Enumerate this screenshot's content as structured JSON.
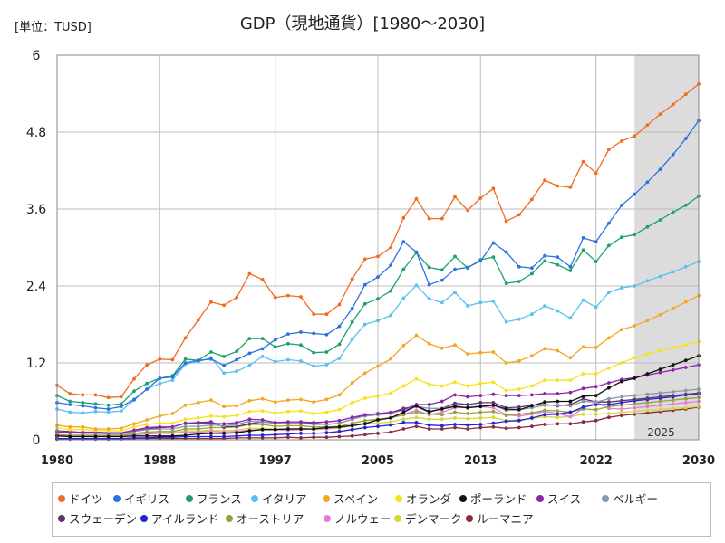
{
  "chart_data": {
    "type": "line",
    "title": "GDP（現地通貨）[1980～2030]",
    "unit_label": "[単位：TUSD]",
    "xlabel": "",
    "ylabel": "",
    "xlim": [
      1980,
      2030
    ],
    "ylim": [
      0,
      6
    ],
    "yticks": [
      "0",
      "1.2",
      "2.4",
      "3.6",
      "4.8",
      "6"
    ],
    "xticks": [
      1980,
      1988,
      1997,
      2005,
      2013,
      2022,
      2030
    ],
    "forecast_start": 2025,
    "forecast_label": "2025",
    "grid": true,
    "legend_position": "bottom",
    "x": [
      1980,
      1981,
      1982,
      1983,
      1984,
      1985,
      1986,
      1987,
      1988,
      1989,
      1990,
      1991,
      1992,
      1993,
      1994,
      1995,
      1996,
      1997,
      1998,
      1999,
      2000,
      2001,
      2002,
      2003,
      2004,
      2005,
      2006,
      2007,
      2008,
      2009,
      2010,
      2011,
      2012,
      2013,
      2014,
      2015,
      2016,
      2017,
      2018,
      2019,
      2020,
      2021,
      2022,
      2023,
      2024,
      2025,
      2026,
      2027,
      2028,
      2029,
      2030
    ],
    "series": [
      {
        "name": "ドイツ",
        "color": "#f26b21",
        "values": [
          0.85,
          0.72,
          0.7,
          0.7,
          0.66,
          0.67,
          0.95,
          1.17,
          1.26,
          1.25,
          1.59,
          1.87,
          2.15,
          2.1,
          2.22,
          2.59,
          2.5,
          2.22,
          2.25,
          2.23,
          1.96,
          1.96,
          2.11,
          2.51,
          2.82,
          2.86,
          3.0,
          3.46,
          3.76,
          3.45,
          3.45,
          3.79,
          3.58,
          3.77,
          3.92,
          3.41,
          3.51,
          3.75,
          4.05,
          3.96,
          3.94,
          4.34,
          4.16,
          4.53,
          4.66,
          4.74,
          4.91,
          5.08,
          5.23,
          5.39,
          5.55
        ]
      },
      {
        "name": "イギリス",
        "color": "#2b72e3",
        "values": [
          0.58,
          0.55,
          0.53,
          0.5,
          0.48,
          0.52,
          0.63,
          0.79,
          0.96,
          0.98,
          1.2,
          1.24,
          1.26,
          1.16,
          1.25,
          1.35,
          1.42,
          1.56,
          1.65,
          1.68,
          1.66,
          1.64,
          1.77,
          2.05,
          2.42,
          2.54,
          2.72,
          3.09,
          2.93,
          2.42,
          2.49,
          2.66,
          2.69,
          2.79,
          3.07,
          2.93,
          2.7,
          2.68,
          2.87,
          2.85,
          2.7,
          3.15,
          3.09,
          3.38,
          3.66,
          3.83,
          4.02,
          4.22,
          4.45,
          4.7,
          4.98
        ]
      },
      {
        "name": "フランス",
        "color": "#1ea070",
        "values": [
          0.69,
          0.6,
          0.58,
          0.56,
          0.54,
          0.56,
          0.76,
          0.88,
          0.96,
          1.0,
          1.26,
          1.24,
          1.37,
          1.3,
          1.38,
          1.58,
          1.58,
          1.45,
          1.5,
          1.48,
          1.36,
          1.37,
          1.49,
          1.84,
          2.12,
          2.2,
          2.32,
          2.66,
          2.92,
          2.69,
          2.65,
          2.86,
          2.68,
          2.81,
          2.85,
          2.44,
          2.47,
          2.59,
          2.79,
          2.73,
          2.64,
          2.96,
          2.78,
          3.03,
          3.16,
          3.2,
          3.32,
          3.43,
          3.55,
          3.66,
          3.8
        ]
      },
      {
        "name": "イタリア",
        "color": "#5bc0ee",
        "values": [
          0.48,
          0.43,
          0.42,
          0.44,
          0.43,
          0.45,
          0.62,
          0.79,
          0.88,
          0.93,
          1.18,
          1.22,
          1.28,
          1.04,
          1.07,
          1.16,
          1.3,
          1.22,
          1.25,
          1.23,
          1.15,
          1.17,
          1.27,
          1.57,
          1.8,
          1.86,
          1.94,
          2.21,
          2.41,
          2.2,
          2.14,
          2.3,
          2.09,
          2.14,
          2.16,
          1.84,
          1.88,
          1.96,
          2.09,
          2.01,
          1.9,
          2.18,
          2.07,
          2.3,
          2.37,
          2.4,
          2.48,
          2.55,
          2.62,
          2.7,
          2.78
        ]
      },
      {
        "name": "スペイン",
        "color": "#f5a623",
        "values": [
          0.23,
          0.2,
          0.2,
          0.17,
          0.17,
          0.18,
          0.25,
          0.31,
          0.37,
          0.41,
          0.54,
          0.58,
          0.62,
          0.52,
          0.53,
          0.61,
          0.64,
          0.59,
          0.62,
          0.63,
          0.59,
          0.63,
          0.7,
          0.89,
          1.04,
          1.15,
          1.26,
          1.47,
          1.63,
          1.5,
          1.43,
          1.48,
          1.34,
          1.36,
          1.37,
          1.2,
          1.23,
          1.31,
          1.42,
          1.39,
          1.28,
          1.45,
          1.44,
          1.59,
          1.72,
          1.78,
          1.86,
          1.95,
          2.05,
          2.15,
          2.25
        ]
      },
      {
        "name": "オランダ",
        "color": "#f7e21b",
        "values": [
          0.19,
          0.16,
          0.16,
          0.15,
          0.14,
          0.14,
          0.2,
          0.24,
          0.26,
          0.26,
          0.32,
          0.34,
          0.37,
          0.36,
          0.38,
          0.44,
          0.45,
          0.42,
          0.44,
          0.45,
          0.41,
          0.43,
          0.47,
          0.58,
          0.65,
          0.68,
          0.73,
          0.84,
          0.95,
          0.87,
          0.84,
          0.9,
          0.84,
          0.88,
          0.9,
          0.77,
          0.79,
          0.84,
          0.93,
          0.93,
          0.93,
          1.03,
          1.03,
          1.12,
          1.2,
          1.28,
          1.34,
          1.39,
          1.44,
          1.48,
          1.53
        ]
      },
      {
        "name": "ポーランド",
        "color": "#111111",
        "values": [
          0.06,
          0.05,
          0.05,
          0.05,
          0.05,
          0.05,
          0.06,
          0.06,
          0.06,
          0.06,
          0.07,
          0.09,
          0.1,
          0.1,
          0.11,
          0.14,
          0.16,
          0.16,
          0.17,
          0.17,
          0.17,
          0.19,
          0.2,
          0.22,
          0.25,
          0.31,
          0.34,
          0.43,
          0.53,
          0.44,
          0.48,
          0.52,
          0.5,
          0.52,
          0.54,
          0.48,
          0.47,
          0.53,
          0.59,
          0.6,
          0.6,
          0.68,
          0.69,
          0.81,
          0.91,
          0.96,
          1.03,
          1.1,
          1.17,
          1.24,
          1.31
        ]
      },
      {
        "name": "スイス",
        "color": "#8e24aa",
        "values": [
          0.12,
          0.12,
          0.12,
          0.12,
          0.11,
          0.11,
          0.15,
          0.19,
          0.2,
          0.2,
          0.26,
          0.26,
          0.26,
          0.25,
          0.27,
          0.32,
          0.31,
          0.27,
          0.28,
          0.28,
          0.27,
          0.28,
          0.3,
          0.35,
          0.39,
          0.41,
          0.43,
          0.47,
          0.55,
          0.55,
          0.6,
          0.7,
          0.67,
          0.69,
          0.71,
          0.69,
          0.69,
          0.7,
          0.72,
          0.72,
          0.74,
          0.8,
          0.83,
          0.89,
          0.94,
          0.97,
          1.01,
          1.05,
          1.09,
          1.13,
          1.17
        ]
      },
      {
        "name": "ベルギー",
        "color": "#8a9aa8",
        "values": [
          0.13,
          0.11,
          0.1,
          0.1,
          0.09,
          0.09,
          0.13,
          0.16,
          0.17,
          0.17,
          0.21,
          0.21,
          0.23,
          0.22,
          0.24,
          0.29,
          0.28,
          0.26,
          0.26,
          0.26,
          0.24,
          0.24,
          0.26,
          0.32,
          0.37,
          0.39,
          0.41,
          0.47,
          0.52,
          0.49,
          0.49,
          0.53,
          0.5,
          0.53,
          0.54,
          0.46,
          0.47,
          0.5,
          0.54,
          0.54,
          0.53,
          0.6,
          0.59,
          0.64,
          0.67,
          0.69,
          0.71,
          0.73,
          0.75,
          0.77,
          0.79
        ]
      },
      {
        "name": "スウェーデン",
        "color": "#5e3473",
        "values": [
          0.14,
          0.13,
          0.11,
          0.1,
          0.1,
          0.1,
          0.14,
          0.17,
          0.19,
          0.2,
          0.26,
          0.27,
          0.28,
          0.2,
          0.21,
          0.25,
          0.28,
          0.26,
          0.26,
          0.26,
          0.26,
          0.24,
          0.26,
          0.32,
          0.39,
          0.4,
          0.42,
          0.49,
          0.52,
          0.43,
          0.49,
          0.57,
          0.55,
          0.58,
          0.58,
          0.5,
          0.51,
          0.54,
          0.55,
          0.53,
          0.55,
          0.64,
          0.59,
          0.59,
          0.61,
          0.63,
          0.65,
          0.67,
          0.69,
          0.71,
          0.73
        ]
      },
      {
        "name": "アイルランド",
        "color": "#2323d6",
        "values": [
          0.02,
          0.02,
          0.02,
          0.02,
          0.02,
          0.02,
          0.03,
          0.03,
          0.04,
          0.04,
          0.05,
          0.05,
          0.05,
          0.05,
          0.06,
          0.07,
          0.07,
          0.08,
          0.09,
          0.1,
          0.1,
          0.11,
          0.13,
          0.16,
          0.19,
          0.21,
          0.23,
          0.27,
          0.27,
          0.23,
          0.22,
          0.24,
          0.23,
          0.24,
          0.26,
          0.29,
          0.3,
          0.34,
          0.39,
          0.4,
          0.43,
          0.51,
          0.55,
          0.55,
          0.58,
          0.61,
          0.63,
          0.65,
          0.67,
          0.7,
          0.72
        ]
      },
      {
        "name": "オーストリア",
        "color": "#9aa03a",
        "values": [
          0.08,
          0.07,
          0.07,
          0.07,
          0.07,
          0.07,
          0.1,
          0.12,
          0.13,
          0.13,
          0.17,
          0.17,
          0.19,
          0.19,
          0.2,
          0.24,
          0.24,
          0.21,
          0.22,
          0.22,
          0.2,
          0.2,
          0.21,
          0.26,
          0.3,
          0.32,
          0.34,
          0.39,
          0.43,
          0.4,
          0.39,
          0.43,
          0.41,
          0.43,
          0.44,
          0.38,
          0.4,
          0.42,
          0.46,
          0.45,
          0.43,
          0.48,
          0.47,
          0.52,
          0.54,
          0.56,
          0.58,
          0.6,
          0.62,
          0.64,
          0.66
        ]
      },
      {
        "name": "ノルウェー",
        "color": "#e57ad8",
        "values": [
          0.06,
          0.07,
          0.07,
          0.06,
          0.06,
          0.07,
          0.08,
          0.09,
          0.1,
          0.1,
          0.12,
          0.12,
          0.13,
          0.12,
          0.13,
          0.15,
          0.16,
          0.16,
          0.15,
          0.16,
          0.17,
          0.17,
          0.2,
          0.23,
          0.26,
          0.31,
          0.35,
          0.4,
          0.46,
          0.39,
          0.43,
          0.5,
          0.51,
          0.52,
          0.5,
          0.39,
          0.37,
          0.4,
          0.44,
          0.41,
          0.36,
          0.49,
          0.59,
          0.49,
          0.48,
          0.5,
          0.52,
          0.54,
          0.56,
          0.58,
          0.6
        ]
      },
      {
        "name": "デンマーク",
        "color": "#d6d640",
        "values": [
          0.07,
          0.06,
          0.06,
          0.06,
          0.06,
          0.06,
          0.08,
          0.1,
          0.11,
          0.11,
          0.14,
          0.14,
          0.15,
          0.14,
          0.15,
          0.18,
          0.18,
          0.17,
          0.17,
          0.18,
          0.16,
          0.17,
          0.18,
          0.22,
          0.25,
          0.26,
          0.28,
          0.32,
          0.35,
          0.32,
          0.32,
          0.34,
          0.33,
          0.34,
          0.35,
          0.3,
          0.31,
          0.33,
          0.36,
          0.35,
          0.36,
          0.4,
          0.4,
          0.41,
          0.43,
          0.44,
          0.46,
          0.47,
          0.49,
          0.5,
          0.52
        ]
      },
      {
        "name": "ルーマニア",
        "color": "#8a2c3a",
        "values": [
          0.01,
          0.01,
          0.01,
          0.01,
          0.01,
          0.01,
          0.02,
          0.02,
          0.02,
          0.02,
          0.02,
          0.02,
          0.02,
          0.02,
          0.03,
          0.03,
          0.03,
          0.03,
          0.04,
          0.03,
          0.04,
          0.04,
          0.05,
          0.06,
          0.08,
          0.1,
          0.12,
          0.17,
          0.21,
          0.17,
          0.17,
          0.19,
          0.17,
          0.19,
          0.2,
          0.18,
          0.19,
          0.21,
          0.24,
          0.25,
          0.25,
          0.28,
          0.3,
          0.35,
          0.38,
          0.4,
          0.42,
          0.44,
          0.46,
          0.48,
          0.51
        ]
      }
    ]
  }
}
